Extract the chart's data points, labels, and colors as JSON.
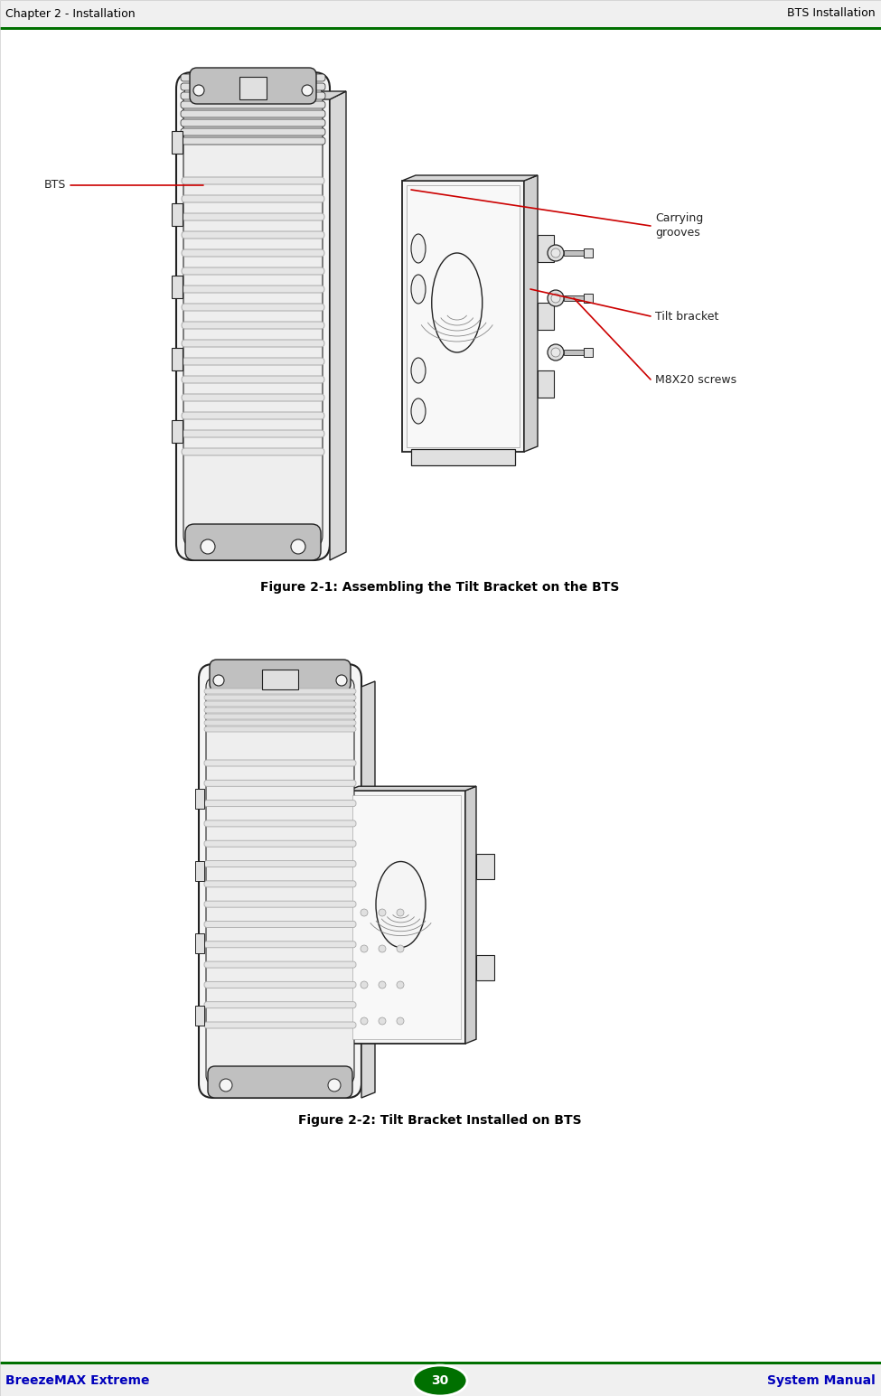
{
  "bg_color": "#f0f0f0",
  "white": "#ffffff",
  "black": "#000000",
  "green_header": "#007000",
  "blue_text": "#0000bb",
  "header_left": "Chapter 2 - Installation",
  "header_right": "BTS Installation",
  "header_font_size": 9,
  "footer_left": "BreezeMAX Extreme",
  "footer_center": "30",
  "footer_right": "System Manual",
  "footer_font_size": 9,
  "fig1_caption": "Figure 2-1: Assembling the Tilt Bracket on the BTS",
  "fig2_caption": "Figure 2-2: Tilt Bracket Installed on BTS",
  "label_bts": "BTS",
  "label_carrying": "Carrying\ngrooves",
  "label_tilt": "Tilt bracket",
  "label_screws": "M8X20 screws",
  "caption_font_size": 10,
  "label_font_size": 9,
  "draw_color": "#222222",
  "fill_light": "#f5f5f5",
  "fill_mid": "#e0e0e0",
  "fill_dark": "#c0c0c0",
  "red": "#cc0000"
}
